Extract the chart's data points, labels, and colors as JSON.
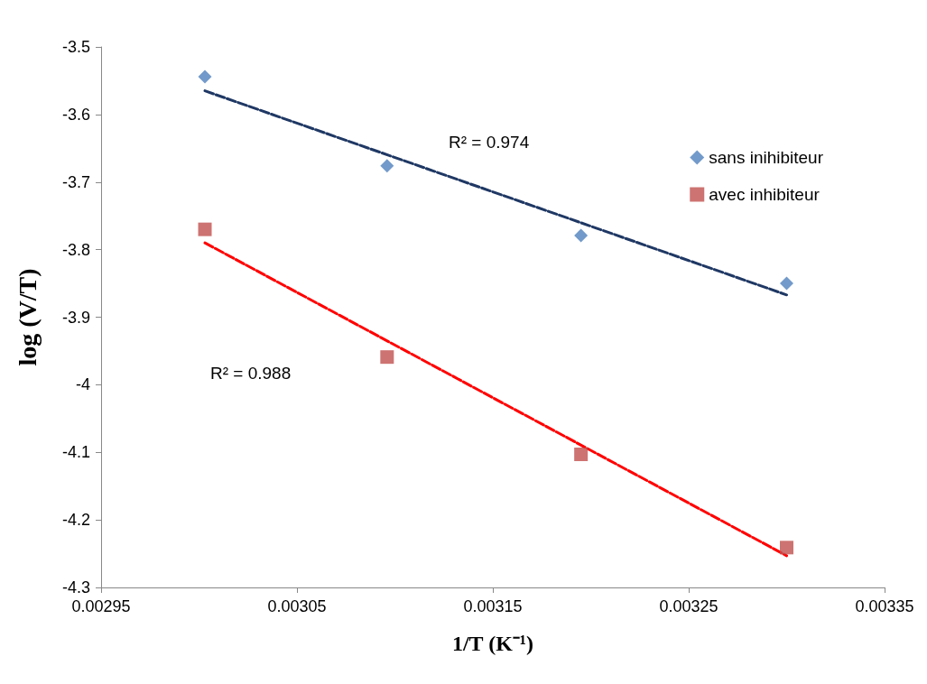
{
  "chart_data": {
    "type": "scatter",
    "xlabel": "1/T (K⁻¹)",
    "ylabel": "log (V/T)",
    "series": [
      {
        "name": "sans inihibiteur",
        "color": "#4f81bd",
        "marker": "diamond",
        "x": [
          0.003003,
          0.003096,
          0.003195,
          0.0033
        ],
        "values": [
          -3.544,
          -3.676,
          -3.779,
          -3.85
        ]
      },
      {
        "name": "avec inhibiteur",
        "color": "#c0504d",
        "marker": "square",
        "x": [
          0.003003,
          0.003096,
          0.003195,
          0.0033
        ],
        "values": [
          -3.77,
          -3.959,
          -4.103,
          -4.241
        ]
      },
      {
        "type": "line",
        "color": "#1f3864",
        "marker": "none",
        "line_style": "dashed",
        "x": [
          0.003003,
          0.0033
        ],
        "values": [
          -3.565,
          -3.867
        ]
      },
      {
        "type": "line",
        "color": "#ff0000",
        "marker": "none",
        "line_style": "dashed",
        "x": [
          0.003003,
          0.0033
        ],
        "values": [
          -3.79,
          -4.253
        ]
      }
    ],
    "annotations": [
      "R² = 0.974",
      "R² = 0.988"
    ],
    "xlim": [
      0.00295,
      0.00335
    ],
    "xticks": [
      0.00295,
      0.00305,
      0.00315,
      0.00325,
      0.00335
    ],
    "ylim": [
      -4.3,
      -3.5
    ],
    "yticks": [
      -4.3,
      -4.2,
      -4.1,
      -4,
      -3.9,
      -3.8,
      -3.7,
      -3.6,
      -3.5
    ],
    "grid": false,
    "legend": "top right"
  }
}
